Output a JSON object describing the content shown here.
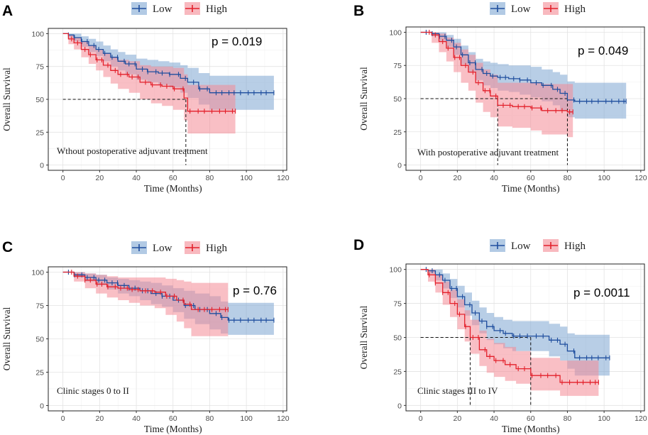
{
  "colors": {
    "low_line": "#1f4e9e",
    "low_band": "#7ea6d2",
    "high_line": "#e3202b",
    "high_band": "#f48a95"
  },
  "chart_data": [
    {
      "type": "line",
      "panel": "A",
      "legend": [
        "Low",
        "High"
      ],
      "p_value": "p = 0.019",
      "subtitle": "Wthout postoperative adjuvant treatment",
      "xlabel": "Time (Months)",
      "ylabel": "Overall Survival",
      "xlim": [
        -8,
        122
      ],
      "ylim": [
        -4,
        104
      ],
      "xticks": [
        0,
        20,
        40,
        60,
        80,
        100,
        120
      ],
      "yticks": [
        0,
        25,
        50,
        75,
        100
      ],
      "median_lines": [
        {
          "y": 50,
          "x": 67
        }
      ],
      "series": [
        {
          "name": "Low",
          "x": [
            0,
            3,
            6,
            10,
            14,
            18,
            22,
            26,
            30,
            34,
            40,
            46,
            52,
            58,
            64,
            68,
            74,
            80,
            90,
            100,
            115
          ],
          "y": [
            100,
            99,
            97,
            94,
            91,
            88,
            85,
            82,
            79,
            77,
            73,
            71,
            70,
            69,
            66,
            63,
            58,
            55,
            55,
            55,
            55
          ],
          "lower": [
            100,
            97,
            94,
            90,
            86,
            83,
            79,
            75,
            72,
            69,
            65,
            63,
            61,
            59,
            55,
            51,
            46,
            42,
            42,
            42,
            42
          ],
          "upper": [
            100,
            100,
            100,
            98,
            96,
            94,
            91,
            88,
            86,
            84,
            81,
            80,
            79,
            78,
            76,
            74,
            70,
            68,
            68,
            68,
            68
          ]
        },
        {
          "name": "High",
          "x": [
            0,
            3,
            6,
            10,
            14,
            18,
            22,
            26,
            30,
            36,
            42,
            48,
            54,
            60,
            66,
            68,
            80,
            90,
            94
          ],
          "y": [
            100,
            96,
            93,
            88,
            84,
            80,
            76,
            72,
            69,
            67,
            63,
            61,
            60,
            58,
            51,
            41,
            41,
            41,
            41
          ],
          "lower": [
            100,
            92,
            88,
            82,
            77,
            72,
            67,
            62,
            58,
            55,
            50,
            47,
            45,
            42,
            34,
            24,
            24,
            24,
            24
          ],
          "upper": [
            100,
            99,
            97,
            94,
            91,
            88,
            85,
            82,
            80,
            79,
            76,
            75,
            75,
            74,
            69,
            61,
            61,
            61,
            61
          ]
        }
      ]
    },
    {
      "type": "line",
      "panel": "B",
      "legend": [
        "Low",
        "High"
      ],
      "p_value": "p = 0.049",
      "subtitle": "With postoperative adjuvant treatment",
      "xlabel": "Time (Months)",
      "ylabel": "Overall Survival",
      "xlim": [
        -8,
        122
      ],
      "ylim": [
        -4,
        104
      ],
      "xticks": [
        0,
        20,
        40,
        60,
        80,
        100,
        120
      ],
      "yticks": [
        0,
        25,
        50,
        75,
        100
      ],
      "median_lines": [
        {
          "y": 50,
          "x": 42
        },
        {
          "y": 50,
          "x": 80
        }
      ],
      "series": [
        {
          "name": "Low",
          "x": [
            0,
            6,
            10,
            14,
            18,
            22,
            26,
            30,
            34,
            38,
            42,
            48,
            54,
            60,
            66,
            72,
            76,
            80,
            84,
            90,
            100,
            112
          ],
          "y": [
            100,
            99,
            97,
            94,
            89,
            83,
            77,
            72,
            69,
            67,
            66,
            65,
            64,
            62,
            60,
            57,
            54,
            49,
            48,
            48,
            48,
            48
          ],
          "lower": [
            100,
            97,
            93,
            89,
            83,
            76,
            70,
            64,
            60,
            58,
            56,
            55,
            53,
            51,
            48,
            45,
            41,
            36,
            35,
            35,
            35,
            35
          ],
          "upper": [
            100,
            100,
            100,
            98,
            95,
            90,
            85,
            80,
            78,
            77,
            76,
            75,
            75,
            74,
            72,
            70,
            68,
            63,
            62,
            62,
            62,
            62
          ]
        },
        {
          "name": "High",
          "x": [
            0,
            6,
            10,
            14,
            18,
            22,
            26,
            30,
            34,
            38,
            42,
            50,
            60,
            66,
            72,
            80,
            83
          ],
          "y": [
            100,
            98,
            93,
            88,
            81,
            75,
            70,
            62,
            56,
            52,
            45,
            44,
            43,
            41,
            41,
            40,
            40
          ],
          "lower": [
            100,
            92,
            85,
            78,
            70,
            62,
            56,
            47,
            40,
            36,
            29,
            28,
            26,
            23,
            23,
            21,
            21
          ],
          "upper": [
            100,
            100,
            99,
            96,
            92,
            87,
            83,
            77,
            72,
            68,
            62,
            62,
            62,
            61,
            61,
            61,
            61
          ]
        }
      ]
    },
    {
      "type": "line",
      "panel": "C",
      "legend": [
        "Low",
        "High"
      ],
      "p_value": "p = 0.76",
      "subtitle": "Clinic stages 0 to II",
      "xlabel": "Time (Months)",
      "ylabel": "Overall Survival",
      "xlim": [
        -8,
        122
      ],
      "ylim": [
        -4,
        104
      ],
      "xticks": [
        0,
        20,
        40,
        60,
        80,
        100,
        120
      ],
      "yticks": [
        0,
        25,
        50,
        75,
        100
      ],
      "median_lines": [],
      "series": [
        {
          "name": "Low",
          "x": [
            0,
            6,
            12,
            18,
            24,
            30,
            36,
            42,
            48,
            54,
            60,
            66,
            72,
            80,
            86,
            90,
            100,
            115
          ],
          "y": [
            100,
            98,
            96,
            94,
            92,
            90,
            88,
            86,
            84,
            82,
            79,
            75,
            72,
            69,
            66,
            64,
            64,
            64
          ],
          "lower": [
            100,
            96,
            93,
            90,
            87,
            84,
            82,
            79,
            76,
            74,
            70,
            65,
            61,
            57,
            54,
            53,
            53,
            53
          ],
          "upper": [
            100,
            100,
            99,
            98,
            96,
            95,
            94,
            93,
            92,
            90,
            88,
            86,
            84,
            82,
            78,
            77,
            77,
            77
          ]
        },
        {
          "name": "High",
          "x": [
            0,
            6,
            12,
            18,
            24,
            30,
            36,
            42,
            50,
            56,
            62,
            66,
            70,
            80,
            90
          ],
          "y": [
            100,
            97,
            94,
            91,
            89,
            88,
            87,
            86,
            85,
            82,
            79,
            76,
            72,
            72,
            72
          ],
          "lower": [
            100,
            93,
            88,
            84,
            81,
            79,
            77,
            75,
            73,
            68,
            63,
            58,
            52,
            52,
            52
          ],
          "upper": [
            100,
            100,
            99,
            98,
            97,
            96,
            96,
            96,
            96,
            95,
            94,
            93,
            92,
            92,
            92
          ]
        }
      ]
    },
    {
      "type": "line",
      "panel": "D",
      "legend": [
        "Low",
        "High"
      ],
      "p_value": "p = 0.0011",
      "subtitle": "Clinic stages III to IV",
      "xlabel": "Time (Months)",
      "ylabel": "Overall Survival",
      "xlim": [
        -8,
        122
      ],
      "ylim": [
        -4,
        104
      ],
      "xticks": [
        0,
        20,
        40,
        60,
        80,
        100,
        120
      ],
      "yticks": [
        0,
        25,
        50,
        75,
        100
      ],
      "median_lines": [
        {
          "y": 50,
          "x": 27
        },
        {
          "y": 50,
          "x": 60
        }
      ],
      "series": [
        {
          "name": "Low",
          "x": [
            0,
            4,
            8,
            12,
            16,
            20,
            24,
            28,
            32,
            36,
            40,
            45,
            50,
            60,
            70,
            76,
            80,
            84,
            90,
            103
          ],
          "y": [
            100,
            99,
            96,
            92,
            86,
            80,
            74,
            68,
            62,
            58,
            55,
            53,
            51,
            51,
            48,
            45,
            40,
            35,
            35,
            35
          ],
          "lower": [
            100,
            97,
            92,
            86,
            79,
            72,
            66,
            59,
            53,
            48,
            45,
            42,
            40,
            40,
            36,
            33,
            27,
            22,
            22,
            22
          ],
          "upper": [
            100,
            100,
            100,
            97,
            93,
            88,
            83,
            77,
            72,
            68,
            65,
            63,
            62,
            62,
            60,
            58,
            53,
            52,
            52,
            52
          ]
        },
        {
          "name": "High",
          "x": [
            0,
            4,
            8,
            12,
            16,
            20,
            24,
            27,
            32,
            36,
            40,
            46,
            52,
            58,
            60,
            70,
            76,
            90,
            97
          ],
          "y": [
            100,
            96,
            90,
            83,
            75,
            67,
            58,
            50,
            41,
            36,
            33,
            30,
            27,
            27,
            22,
            22,
            17,
            17,
            17
          ],
          "lower": [
            100,
            91,
            83,
            74,
            65,
            56,
            47,
            38,
            29,
            24,
            21,
            18,
            16,
            16,
            11,
            11,
            7,
            7,
            7
          ],
          "upper": [
            100,
            100,
            96,
            91,
            85,
            78,
            70,
            63,
            55,
            49,
            46,
            43,
            40,
            40,
            35,
            35,
            33,
            33,
            33
          ]
        }
      ]
    }
  ]
}
